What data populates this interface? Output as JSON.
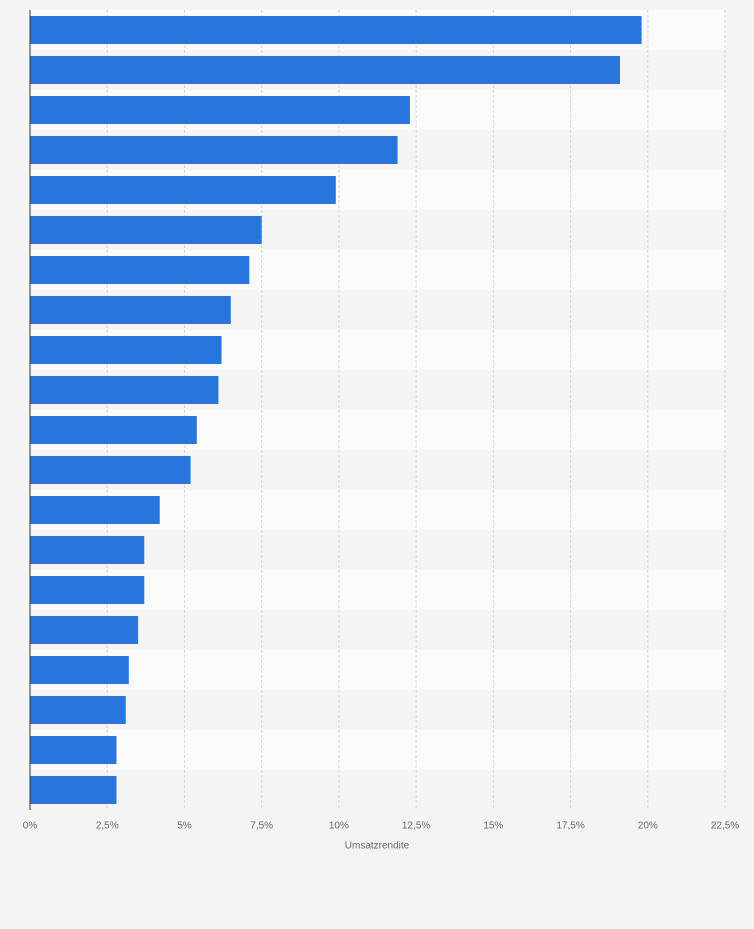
{
  "chart_data": {
    "type": "bar",
    "orientation": "horizontal",
    "xlabel": "Umsatzrendite",
    "categories": [
      null,
      null,
      null,
      null,
      null,
      null,
      null,
      null,
      null,
      null,
      null,
      null,
      null,
      null,
      null,
      null,
      null,
      null,
      null,
      null
    ],
    "values": [
      19.8,
      19.1,
      12.3,
      11.9,
      9.9,
      7.5,
      7.1,
      6.5,
      6.2,
      6.1,
      5.4,
      5.2,
      4.2,
      3.7,
      3.7,
      3.5,
      3.2,
      3.1,
      2.8,
      2.8
    ],
    "color": "#2876dd",
    "xlim": [
      0,
      22.5
    ],
    "xticks": [
      {
        "value": 0,
        "label": "0%"
      },
      {
        "value": 2.5,
        "label": "2,5%"
      },
      {
        "value": 5,
        "label": "5%"
      },
      {
        "value": 7.5,
        "label": "7,5%"
      },
      {
        "value": 10,
        "label": "10%"
      },
      {
        "value": 12.5,
        "label": "12,5%"
      },
      {
        "value": 15,
        "label": "15%"
      },
      {
        "value": 17.5,
        "label": "17,5%"
      },
      {
        "value": 20,
        "label": "20%"
      },
      {
        "value": 22.5,
        "label": "22,5%"
      }
    ],
    "grid": true
  }
}
